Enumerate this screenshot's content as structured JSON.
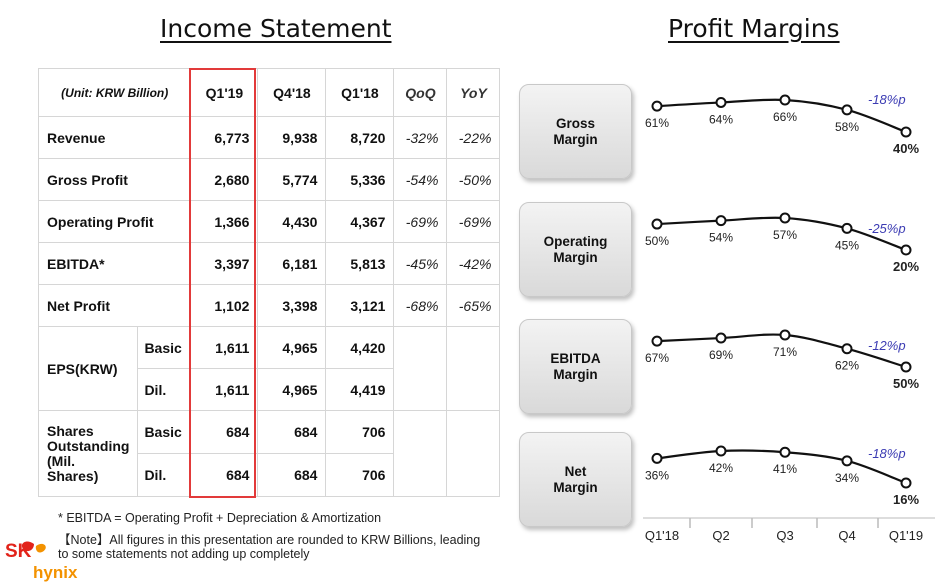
{
  "titles": {
    "income": "Income Statement",
    "margins": "Profit Margins"
  },
  "table": {
    "unit": "(Unit: KRW Billion)",
    "headers": [
      "Q1'19",
      "Q4'18",
      "Q1'18",
      "QoQ",
      "YoY"
    ],
    "rows": [
      {
        "label": "Revenue",
        "values": [
          "6,773",
          "9,938",
          "8,720"
        ],
        "qoq": "-32%",
        "yoy": "-22%"
      },
      {
        "label": "Gross Profit",
        "values": [
          "2,680",
          "5,774",
          "5,336"
        ],
        "qoq": "-54%",
        "yoy": "-50%"
      },
      {
        "label": "Operating Profit",
        "values": [
          "1,366",
          "4,430",
          "4,367"
        ],
        "qoq": "-69%",
        "yoy": "-69%"
      },
      {
        "label": "EBITDA*",
        "values": [
          "3,397",
          "6,181",
          "5,813"
        ],
        "qoq": "-45%",
        "yoy": "-42%"
      },
      {
        "label": "Net Profit",
        "values": [
          "1,102",
          "3,398",
          "3,121"
        ],
        "qoq": "-68%",
        "yoy": "-65%"
      }
    ],
    "eps": {
      "label": "EPS(KRW)",
      "basic": {
        "label": "Basic",
        "values": [
          "1,611",
          "4,965",
          "4,420"
        ]
      },
      "dil": {
        "label": "Dil.",
        "values": [
          "1,611",
          "4,965",
          "4,419"
        ]
      }
    },
    "shares": {
      "label": [
        "Shares",
        "Outstanding",
        "(Mil.",
        "Shares)"
      ],
      "basic": {
        "label": "Basic",
        "values": [
          "684",
          "684",
          "706"
        ]
      },
      "dil": {
        "label": "Dil.",
        "values": [
          "684",
          "684",
          "706"
        ]
      }
    }
  },
  "notes": {
    "footnote": "* EBITDA = Operating Profit + Depreciation & Amortization",
    "disclaimer": "【Note】All figures in this presentation are rounded to KRW Billions, leading to some statements not adding up completely"
  },
  "logo": {
    "sk": "SK",
    "hynix": "hynix"
  },
  "colors": {
    "highlight": "#e23a3a",
    "logo_red": "#e2231a",
    "logo_orange": "#f39200",
    "change": "#3b3bb3"
  },
  "chart_data": {
    "type": "line",
    "categories": [
      "Q1'18",
      "Q2",
      "Q3",
      "Q4",
      "Q1'19"
    ],
    "series": [
      {
        "name": "Gross Margin",
        "box_label": [
          "Gross",
          "Margin"
        ],
        "values": [
          61,
          64,
          66,
          58,
          40
        ],
        "change": "-18%p"
      },
      {
        "name": "Operating Margin",
        "box_label": [
          "Operating",
          "Margin"
        ],
        "values": [
          50,
          54,
          57,
          45,
          20
        ],
        "change": "-25%p"
      },
      {
        "name": "EBITDA Margin",
        "box_label": [
          "EBITDA",
          "Margin"
        ],
        "values": [
          67,
          69,
          71,
          62,
          50
        ],
        "change": "-12%p"
      },
      {
        "name": "Net Margin",
        "box_label": [
          "Net",
          "Margin"
        ],
        "values": [
          36,
          42,
          41,
          34,
          16
        ],
        "change": "-18%p"
      }
    ]
  }
}
